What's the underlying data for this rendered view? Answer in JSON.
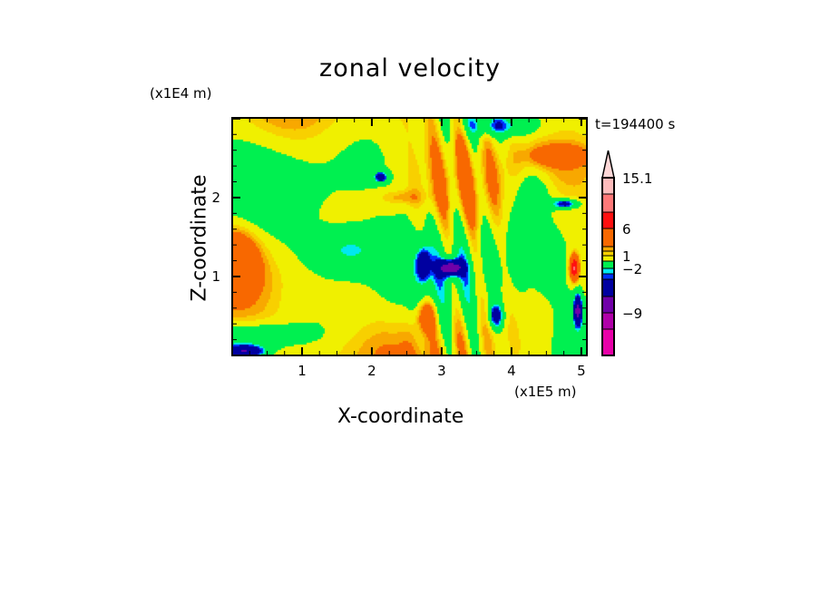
{
  "chart_data": {
    "type": "heatmap",
    "title": "zonal velocity",
    "xlabel": "X-coordinate",
    "ylabel": "Z-coordinate",
    "x_unit": "(x1E5 m)",
    "y_unit": "(x1E4 m)",
    "annotation": "t=194400 s",
    "xlim": [
      0,
      5.08
    ],
    "ylim": [
      0,
      3.01
    ],
    "x_ticks": [
      1,
      2,
      3,
      4,
      5
    ],
    "x_tick_labels": [
      "1",
      "2",
      "3",
      "4",
      "5"
    ],
    "y_ticks": [
      1,
      2
    ],
    "y_tick_labels": [
      "1",
      "2"
    ],
    "colorbar": {
      "thresholds": [
        -12,
        -9,
        -6,
        -3,
        -2.5,
        -2,
        0,
        1,
        1.5,
        2,
        6,
        9,
        12,
        15.1
      ],
      "colors": [
        "#e800a8",
        "#b000a8",
        "#7000a8",
        "#0000a0",
        "#0030ff",
        "#00e8f0",
        "#00f050",
        "#f0f000",
        "#f8d000",
        "#f8a800",
        "#f86800",
        "#ff1010",
        "#ff7878",
        "#ffbcbc",
        "#ffd8d8"
      ],
      "labels": [
        {
          "value": 15.1,
          "text": "15.1"
        },
        {
          "value": 6,
          "text": "6"
        },
        {
          "value": 1,
          "text": "1"
        },
        {
          "value": -2,
          "text": "-2"
        },
        {
          "value": -9,
          "text": "-9"
        }
      ],
      "extend": "max"
    },
    "field_approximation": {
      "base": 0.4,
      "features": [
        {
          "x": 3.13,
          "z": 1.11,
          "amp": -8,
          "sx": 0.16,
          "sz": 0.1
        },
        {
          "x": 2.74,
          "z": 1.15,
          "amp": -4.5,
          "sx": 0.09,
          "sz": 0.2
        },
        {
          "x": 2.13,
          "z": 2.26,
          "amp": -4.5,
          "sx": 0.1,
          "sz": 0.07
        },
        {
          "x": 1.65,
          "z": 1.34,
          "amp": -2.8,
          "sx": 0.55,
          "sz": 0.28
        },
        {
          "x": 0.05,
          "z": 1.26,
          "amp": 3.2,
          "sx": 0.35,
          "sz": 0.4
        },
        {
          "x": 2.78,
          "z": 0.5,
          "amp": 3.5,
          "sx": 0.14,
          "sz": 0.2
        },
        {
          "x": 4.9,
          "z": 1.11,
          "amp": 9,
          "sx": 0.06,
          "sz": 0.15
        },
        {
          "x": 4.95,
          "z": 0.57,
          "amp": -7,
          "sx": 0.06,
          "sz": 0.2
        },
        {
          "x": 4.77,
          "z": 1.92,
          "amp": -4.5,
          "sx": 0.2,
          "sz": 0.06
        },
        {
          "x": 4.69,
          "z": 2.53,
          "amp": 2.6,
          "sx": 0.4,
          "sz": 0.12
        },
        {
          "x": 0.18,
          "z": 0.05,
          "amp": -6,
          "sx": 0.3,
          "sz": 0.08
        },
        {
          "x": 3.78,
          "z": 0.5,
          "amp": -4.5,
          "sx": 0.1,
          "sz": 0.15
        },
        {
          "x": 0.4,
          "z": 0.25,
          "amp": -2.6,
          "sx": 0.7,
          "sz": 0.15
        },
        {
          "x": 1.2,
          "z": 0.15,
          "amp": 0.3,
          "sx": 0.8,
          "sz": 0.3
        },
        {
          "x": 4.3,
          "z": 2.05,
          "amp": -2.6,
          "sx": 0.25,
          "sz": 0.3
        },
        {
          "x": 3.85,
          "z": 2.9,
          "amp": -2.6,
          "sx": 0.5,
          "sz": 0.12
        },
        {
          "x": 2.4,
          "z": 2.0,
          "amp": 1.4,
          "sx": 0.35,
          "sz": 0.1
        }
      ]
    }
  }
}
